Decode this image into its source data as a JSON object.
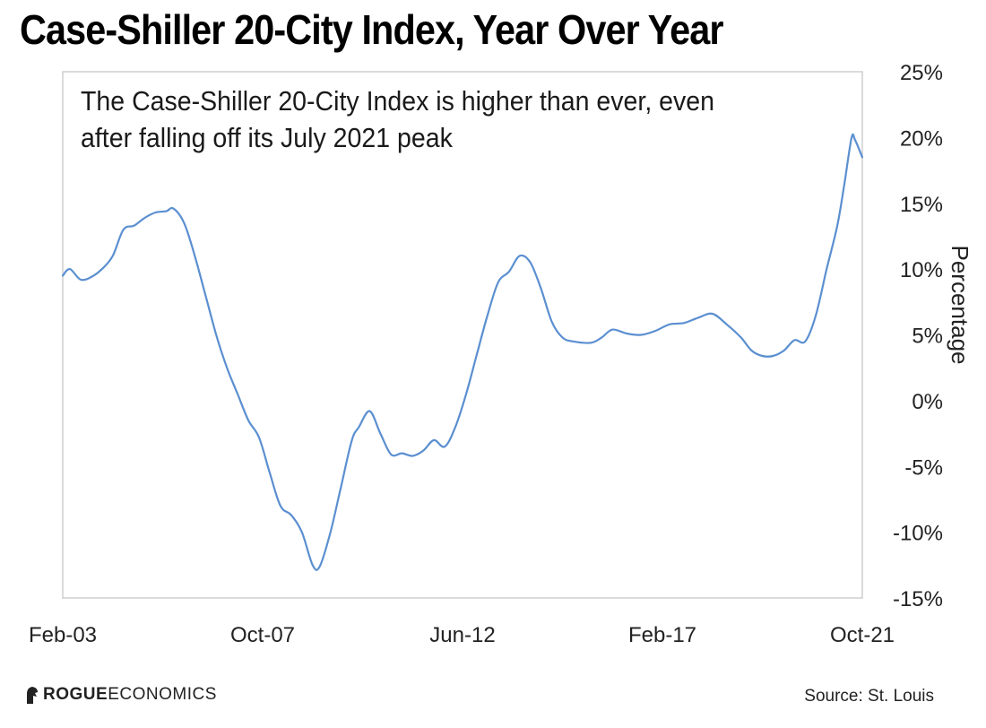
{
  "title": "Case-Shiller 20-City Index, Year Over Year",
  "annotation": "The Case-Shiller 20-City Index is higher than ever, even after falling off its July 2021 peak",
  "footer": {
    "logo_text_strong": "ROGUE",
    "logo_text_rest": " ECONOMICS",
    "source": "Source: St. Louis"
  },
  "colors": {
    "line": "#5b8fd0",
    "frame": "#cfcfcf"
  },
  "chart_data": {
    "type": "line",
    "title": "Case-Shiller 20-City Index, Year Over Year",
    "xlabel": "",
    "ylabel": "Percentage",
    "x_ticks": [
      "Feb-03",
      "Oct-07",
      "Jun-12",
      "Feb-17",
      "Oct-21"
    ],
    "y_ticks": [
      "25%",
      "20%",
      "15%",
      "10%",
      "5%",
      "0%",
      "-5%",
      "-10%",
      "-15%"
    ],
    "xlim": [
      "2003-02",
      "2021-10"
    ],
    "ylim": [
      -15,
      25
    ],
    "grid": false,
    "series": [
      {
        "values": [
          [
            "2003-02",
            9.5
          ],
          [
            "2003-04",
            10.0
          ],
          [
            "2003-07",
            9.2
          ],
          [
            "2003-10",
            9.4
          ],
          [
            "2004-01",
            10.0
          ],
          [
            "2004-04",
            11.0
          ],
          [
            "2004-07",
            13.0
          ],
          [
            "2004-10",
            13.3
          ],
          [
            "2005-01",
            13.9
          ],
          [
            "2005-04",
            14.3
          ],
          [
            "2005-07",
            14.4
          ],
          [
            "2005-09",
            14.6
          ],
          [
            "2005-12",
            13.5
          ],
          [
            "2006-03",
            11.0
          ],
          [
            "2006-06",
            8.0
          ],
          [
            "2006-09",
            5.0
          ],
          [
            "2006-12",
            2.5
          ],
          [
            "2007-03",
            0.5
          ],
          [
            "2007-06",
            -1.5
          ],
          [
            "2007-09",
            -2.8
          ],
          [
            "2007-12",
            -5.5
          ],
          [
            "2008-03",
            -8.0
          ],
          [
            "2008-06",
            -8.7
          ],
          [
            "2008-09",
            -10.0
          ],
          [
            "2008-12",
            -12.5
          ],
          [
            "2009-02",
            -12.6
          ],
          [
            "2009-05",
            -10.0
          ],
          [
            "2009-08",
            -6.5
          ],
          [
            "2009-11",
            -3.0
          ],
          [
            "2010-01",
            -2.0
          ],
          [
            "2010-04",
            -0.8
          ],
          [
            "2010-07",
            -2.5
          ],
          [
            "2010-10",
            -4.1
          ],
          [
            "2011-01",
            -4.0
          ],
          [
            "2011-04",
            -4.2
          ],
          [
            "2011-07",
            -3.8
          ],
          [
            "2011-10",
            -3.0
          ],
          [
            "2012-01",
            -3.5
          ],
          [
            "2012-04",
            -2.0
          ],
          [
            "2012-07",
            0.5
          ],
          [
            "2012-10",
            3.5
          ],
          [
            "2013-01",
            6.5
          ],
          [
            "2013-04",
            9.0
          ],
          [
            "2013-07",
            9.8
          ],
          [
            "2013-10",
            11.0
          ],
          [
            "2014-01",
            10.5
          ],
          [
            "2014-04",
            8.5
          ],
          [
            "2014-07",
            6.0
          ],
          [
            "2014-10",
            4.8
          ],
          [
            "2015-01",
            4.5
          ],
          [
            "2015-06",
            4.4
          ],
          [
            "2015-09",
            4.8
          ],
          [
            "2015-12",
            5.4
          ],
          [
            "2016-04",
            5.1
          ],
          [
            "2016-08",
            5.0
          ],
          [
            "2016-12",
            5.3
          ],
          [
            "2017-04",
            5.8
          ],
          [
            "2017-08",
            5.9
          ],
          [
            "2017-12",
            6.3
          ],
          [
            "2018-04",
            6.6
          ],
          [
            "2018-08",
            5.8
          ],
          [
            "2018-12",
            4.8
          ],
          [
            "2019-03",
            3.8
          ],
          [
            "2019-06",
            3.4
          ],
          [
            "2019-09",
            3.4
          ],
          [
            "2019-12",
            3.8
          ],
          [
            "2020-03",
            4.6
          ],
          [
            "2020-06",
            4.5
          ],
          [
            "2020-09",
            6.5
          ],
          [
            "2020-12",
            10.0
          ],
          [
            "2021-03",
            13.3
          ],
          [
            "2021-05",
            16.5
          ],
          [
            "2021-07",
            20.0
          ],
          [
            "2021-08",
            19.8
          ],
          [
            "2021-10",
            18.5
          ]
        ]
      }
    ]
  }
}
